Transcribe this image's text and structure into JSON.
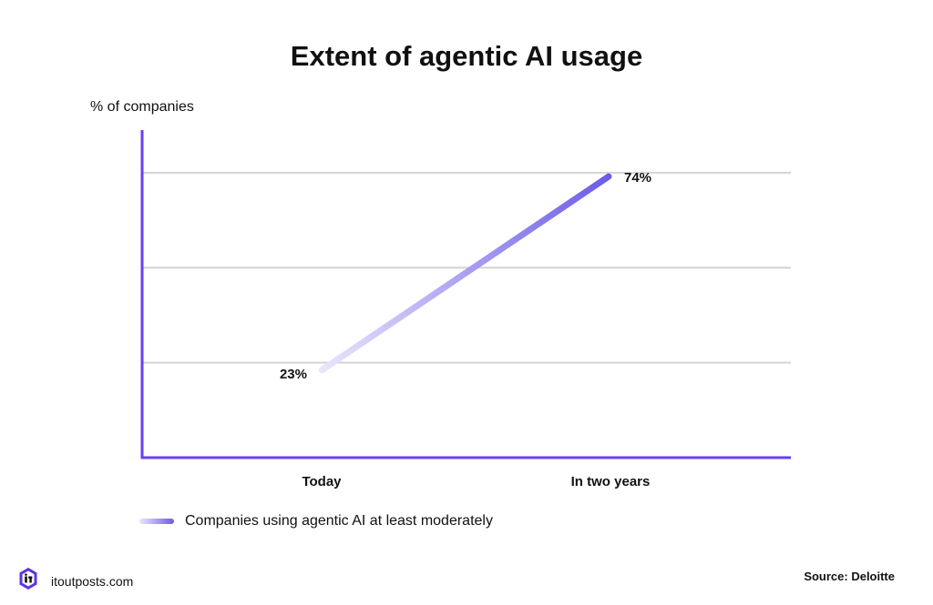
{
  "chart_data": {
    "type": "line",
    "title": "Extent of agentic AI usage",
    "ylabel": "% of companies",
    "xlabel": "",
    "categories": [
      "Today",
      "In two years"
    ],
    "series": [
      {
        "name": "Companies using agentic AI at least moderately",
        "values": [
          23,
          74
        ],
        "labels": [
          "23%",
          "74%"
        ]
      }
    ],
    "ylim": [
      0,
      75
    ],
    "grid": true,
    "legend_position": "bottom-left",
    "colors": {
      "axis": "#6a3ff0",
      "grid": "#d4d4d4",
      "line_start": "#ece6fb",
      "line_end": "#6b5ce8"
    }
  },
  "footer": {
    "site": "itoutposts.com",
    "source": "Source: Deloitte",
    "logo_icon": "itoutposts-logo-icon"
  }
}
